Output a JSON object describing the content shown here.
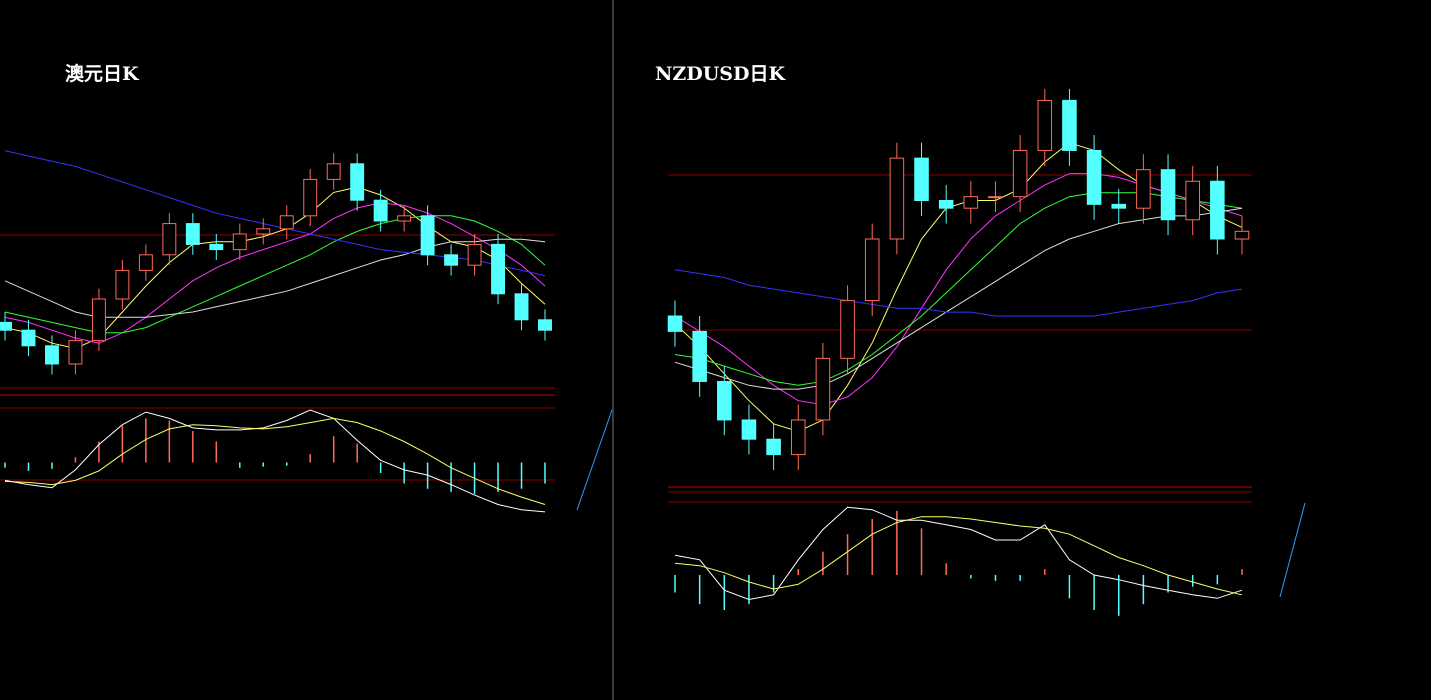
{
  "chart_data": [
    {
      "type": "candlestick",
      "title": "澳元日K",
      "up_color": "#ff6a5a",
      "down_color": "#54ffff",
      "ylim": [
        0,
        100
      ],
      "open": [
        26,
        23,
        17,
        10,
        19,
        35,
        46,
        52,
        64,
        56,
        54,
        60,
        62,
        67,
        81,
        87,
        73,
        65,
        67,
        52,
        48,
        56,
        37,
        27
      ],
      "high": [
        30,
        27,
        21,
        23,
        39,
        50,
        56,
        68,
        68,
        60,
        64,
        66,
        71,
        85,
        91,
        91,
        77,
        71,
        71,
        56,
        60,
        60,
        41,
        31
      ],
      "low": [
        19,
        13,
        6,
        6,
        15,
        31,
        42,
        48,
        52,
        50,
        50,
        56,
        58,
        63,
        77,
        69,
        61,
        61,
        48,
        44,
        44,
        33,
        23,
        19
      ],
      "close": [
        23,
        17,
        10,
        19,
        35,
        46,
        52,
        64,
        56,
        54,
        60,
        62,
        67,
        81,
        87,
        73,
        65,
        67,
        52,
        48,
        56,
        37,
        27,
        23
      ],
      "series": [
        {
          "color": "#ffff66",
          "values": [
            24,
            22,
            18,
            16,
            20,
            30,
            40,
            49,
            56,
            57,
            57,
            59,
            62,
            68,
            76,
            78,
            75,
            70,
            63,
            57,
            55,
            50,
            41,
            33
          ]
        },
        {
          "color": "#ff33ff",
          "values": [
            28,
            26,
            23,
            20,
            18,
            22,
            28,
            35,
            42,
            47,
            51,
            54,
            57,
            60,
            66,
            70,
            72,
            71,
            68,
            64,
            59,
            54,
            48,
            40
          ]
        },
        {
          "color": "#33ff33",
          "values": [
            30,
            28,
            26,
            24,
            22,
            22,
            24,
            28,
            32,
            36,
            40,
            44,
            48,
            52,
            57,
            61,
            64,
            66,
            67,
            67,
            65,
            61,
            56,
            48
          ]
        },
        {
          "color": "#dddddd",
          "values": [
            42,
            38,
            34,
            30,
            28,
            28,
            28,
            29,
            30,
            32,
            34,
            36,
            38,
            41,
            44,
            47,
            50,
            52,
            55,
            57,
            57,
            58,
            58,
            57
          ]
        },
        {
          "color": "#3333ff",
          "values": [
            92,
            90,
            88,
            86,
            83,
            80,
            77,
            74,
            71,
            68,
            66,
            64,
            62,
            60,
            58,
            56,
            54,
            53,
            52,
            51,
            50,
            48,
            46,
            44
          ]
        }
      ],
      "macd": {
        "ylim": [
          -50,
          50
        ],
        "histogram": [
          -5,
          -8,
          -6,
          5,
          20,
          35,
          42,
          40,
          30,
          20,
          -5,
          -4,
          -3,
          8,
          25,
          18,
          -10,
          -20,
          -25,
          -28,
          -30,
          -28,
          -25,
          -20
        ],
        "series": [
          {
            "color": "#ffffff",
            "values": [
              -17,
              -21,
              -24,
              -7,
              17,
              36,
              48,
              42,
              33,
              31,
              31,
              33,
              40,
              50,
              42,
              21,
              2,
              -7,
              -12,
              -21,
              -31,
              -40,
              -45,
              -47
            ]
          },
          {
            "color": "#ffff66",
            "values": [
              -18,
              -19,
              -21,
              -17,
              -8,
              8,
              22,
              32,
              36,
              35,
              33,
              32,
              34,
              38,
              42,
              38,
              30,
              20,
              8,
              -5,
              -15,
              -25,
              -33,
              -40
            ]
          }
        ]
      }
    },
    {
      "type": "candlestick",
      "title": "NZDUSD日K",
      "up_color": "#ff6a5a",
      "down_color": "#54ffff",
      "ylim": [
        0,
        100
      ],
      "open": [
        40,
        36,
        23,
        13,
        8,
        4,
        13,
        29,
        44,
        60,
        81,
        70,
        68,
        71,
        71,
        83,
        96,
        83,
        69,
        68,
        78,
        65,
        75,
        60
      ],
      "high": [
        44,
        40,
        27,
        17,
        12,
        17,
        33,
        48,
        64,
        85,
        85,
        74,
        75,
        75,
        87,
        99,
        99,
        87,
        73,
        82,
        82,
        79,
        79,
        66
      ],
      "low": [
        32,
        19,
        9,
        4,
        0,
        0,
        9,
        25,
        40,
        56,
        66,
        64,
        64,
        67,
        67,
        79,
        79,
        65,
        64,
        64,
        61,
        61,
        56,
        56
      ],
      "close": [
        36,
        23,
        13,
        8,
        4,
        13,
        29,
        44,
        60,
        81,
        70,
        68,
        71,
        71,
        83,
        96,
        83,
        69,
        68,
        78,
        65,
        75,
        60,
        62
      ],
      "series": [
        {
          "color": "#ffff66",
          "values": [
            38,
            32,
            25,
            18,
            12,
            10,
            13,
            22,
            33,
            47,
            60,
            68,
            70,
            70,
            73,
            80,
            85,
            83,
            78,
            74,
            72,
            70,
            66,
            63
          ]
        },
        {
          "color": "#ff33ff",
          "values": [
            40,
            36,
            32,
            27,
            22,
            18,
            17,
            19,
            24,
            32,
            42,
            52,
            60,
            66,
            70,
            74,
            77,
            77,
            76,
            74,
            72,
            70,
            68,
            66
          ]
        },
        {
          "color": "#33ff33",
          "values": [
            30,
            29,
            27,
            25,
            23,
            22,
            23,
            26,
            30,
            35,
            40,
            46,
            52,
            58,
            64,
            68,
            71,
            72,
            72,
            72,
            71,
            70,
            69,
            68
          ]
        },
        {
          "color": "#dddddd",
          "values": [
            28,
            26,
            24,
            22,
            21,
            21,
            22,
            25,
            29,
            33,
            37,
            41,
            45,
            49,
            53,
            57,
            60,
            62,
            64,
            65,
            66,
            66,
            67,
            68
          ]
        },
        {
          "color": "#3333ff",
          "values": [
            52,
            51,
            50,
            48,
            47,
            46,
            45,
            44,
            43,
            42,
            42,
            41,
            41,
            40,
            40,
            40,
            40,
            40,
            41,
            42,
            43,
            44,
            46,
            47
          ]
        }
      ],
      "macd": {
        "ylim": [
          -60,
          60
        ],
        "histogram": [
          -15,
          -25,
          -30,
          -25,
          -15,
          5,
          20,
          35,
          48,
          55,
          40,
          10,
          -3,
          -5,
          -5,
          5,
          -20,
          -30,
          -35,
          -25,
          -15,
          -10,
          -8,
          5
        ],
        "series": [
          {
            "color": "#ffffff",
            "values": [
              17,
              13,
              -13,
              -21,
              -17,
              13,
              39,
              58,
              56,
              47,
              47,
              43,
              39,
              30,
              30,
              43,
              13,
              0,
              -4,
              -9,
              -13,
              -17,
              -20,
              -13
            ]
          },
          {
            "color": "#ffff66",
            "values": [
              10,
              8,
              2,
              -6,
              -12,
              -8,
              5,
              20,
              35,
              45,
              50,
              50,
              48,
              45,
              42,
              40,
              35,
              25,
              15,
              8,
              0,
              -6,
              -12,
              -17
            ]
          }
        ]
      }
    }
  ]
}
